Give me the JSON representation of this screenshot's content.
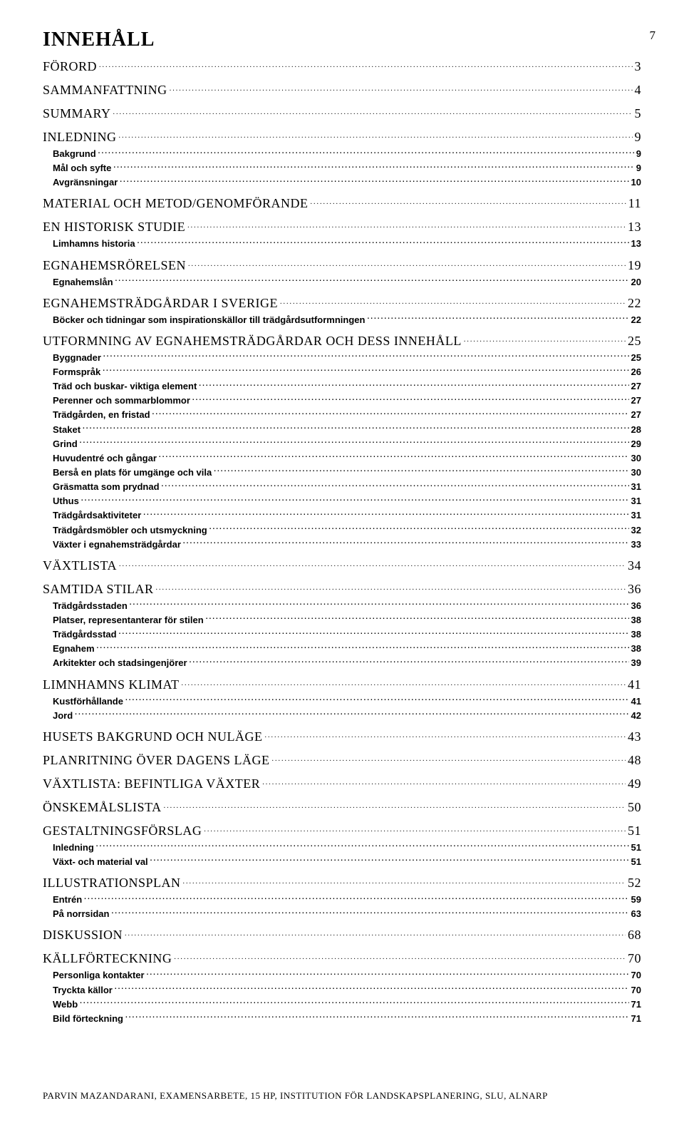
{
  "page_number": "7",
  "title": "INNEHÅLL",
  "entries": [
    {
      "level": "section",
      "label": "FÖRORD",
      "page": "3"
    },
    {
      "level": "section",
      "label": "SAMMANFATTNING",
      "page": "4"
    },
    {
      "level": "section",
      "label": "SUMMARY",
      "page": "5"
    },
    {
      "level": "section",
      "label": "INLEDNING",
      "page": "9"
    },
    {
      "level": "subsection",
      "label": "Bakgrund",
      "page": "9"
    },
    {
      "level": "subsection",
      "label": "Mål och syfte",
      "page": "9"
    },
    {
      "level": "subsection",
      "label": "Avgränsningar",
      "page": "10"
    },
    {
      "level": "section",
      "label": "MATERIAL OCH METOD/GENOMFÖRANDE",
      "page": "11"
    },
    {
      "level": "section",
      "label": "EN HISTORISK STUDIE",
      "page": "13"
    },
    {
      "level": "subsection",
      "label": "Limhamns historia",
      "page": "13"
    },
    {
      "level": "section",
      "label": "EGNAHEMSRÖRELSEN",
      "page": "19"
    },
    {
      "level": "subsection",
      "label": "Egnahemslån",
      "page": "20"
    },
    {
      "level": "section",
      "label": "EGNAHEMSTRÄDGÅRDAR I SVERIGE",
      "page": "22"
    },
    {
      "level": "subsection",
      "label": "Böcker och tidningar som inspirationskällor till trädgårdsutformningen",
      "page": "22"
    },
    {
      "level": "section",
      "label": "UTFORMNING AV EGNAHEMSTRÄDGÅRDAR OCH DESS INNEHÅLL",
      "page": "25"
    },
    {
      "level": "subsection",
      "label": "Byggnader",
      "page": "25"
    },
    {
      "level": "subsection",
      "label": "Formspråk",
      "page": "26"
    },
    {
      "level": "subsection",
      "label": "Träd och buskar- viktiga element",
      "page": "27"
    },
    {
      "level": "subsection",
      "label": "Perenner och sommarblommor",
      "page": "27"
    },
    {
      "level": "subsection",
      "label": "Trädgården, en fristad",
      "page": "27"
    },
    {
      "level": "subsection",
      "label": "Staket",
      "page": "28"
    },
    {
      "level": "subsection",
      "label": "Grind",
      "page": "29"
    },
    {
      "level": "subsection",
      "label": "Huvudentré och gångar",
      "page": "30"
    },
    {
      "level": "subsection",
      "label": "Berså en plats för umgänge och vila",
      "page": "30"
    },
    {
      "level": "subsection",
      "label": "Gräsmatta som prydnad",
      "page": "31"
    },
    {
      "level": "subsection",
      "label": "Uthus",
      "page": "31"
    },
    {
      "level": "subsection",
      "label": "Trädgårdsaktiviteter",
      "page": "31"
    },
    {
      "level": "subsection",
      "label": "Trädgårdsmöbler och utsmyckning",
      "page": "32"
    },
    {
      "level": "subsection",
      "label": "Växter i egnahemsträdgårdar",
      "page": "33"
    },
    {
      "level": "section",
      "label": "VÄXTLISTA",
      "page": "34"
    },
    {
      "level": "section",
      "label": "SAMTIDA STILAR",
      "page": "36"
    },
    {
      "level": "subsection",
      "label": "Trädgårdsstaden",
      "page": "36"
    },
    {
      "level": "subsection",
      "label": "Platser, representanterar för stilen",
      "page": "38"
    },
    {
      "level": "subsection",
      "label": "Trädgårdsstad",
      "page": "38"
    },
    {
      "level": "subsection",
      "label": "Egnahem",
      "page": "38"
    },
    {
      "level": "subsection",
      "label": "Arkitekter och stadsingenjörer",
      "page": "39"
    },
    {
      "level": "section",
      "label": "LIMNHAMNS KLIMAT",
      "page": "41"
    },
    {
      "level": "subsection",
      "label": "Kustförhållande",
      "page": "41"
    },
    {
      "level": "subsection",
      "label": "Jord",
      "page": "42"
    },
    {
      "level": "section",
      "label": "HUSETS BAKGRUND OCH NULÄGE",
      "page": "43"
    },
    {
      "level": "section",
      "label": "PLANRITNING ÖVER DAGENS LÄGE",
      "page": "48"
    },
    {
      "level": "section",
      "label": "VÄXTLISTA: BEFINTLIGA VÄXTER",
      "page": "49"
    },
    {
      "level": "section",
      "label": "ÖNSKEMÅLSLISTA",
      "page": "50"
    },
    {
      "level": "section",
      "label": "GESTALTNINGSFÖRSLAG",
      "page": "51"
    },
    {
      "level": "subsection",
      "label": "Inledning",
      "page": "51"
    },
    {
      "level": "subsection",
      "label": "Växt- och material val",
      "page": "51"
    },
    {
      "level": "section",
      "label": "ILLUSTRATIONSPLAN",
      "page": "52"
    },
    {
      "level": "subsection",
      "label": "Entrén",
      "page": "59"
    },
    {
      "level": "subsection",
      "label": "På norrsidan",
      "page": "63"
    },
    {
      "level": "section",
      "label": "DISKUSSION",
      "page": "68"
    },
    {
      "level": "section",
      "label": "KÄLLFÖRTECKNING",
      "page": "70"
    },
    {
      "level": "subsection",
      "label": "Personliga kontakter",
      "page": "70"
    },
    {
      "level": "subsection",
      "label": "Tryckta källor",
      "page": "70"
    },
    {
      "level": "subsection",
      "label": "Webb",
      "page": "71"
    },
    {
      "level": "subsection",
      "label": "Bild förteckning",
      "page": "71"
    }
  ],
  "footer": "PARVIN MAZANDARANI, EXAMENSARBETE, 15 HP, INSTITUTION FÖR LANDSKAPSPLANERING, SLU, ALNARP"
}
